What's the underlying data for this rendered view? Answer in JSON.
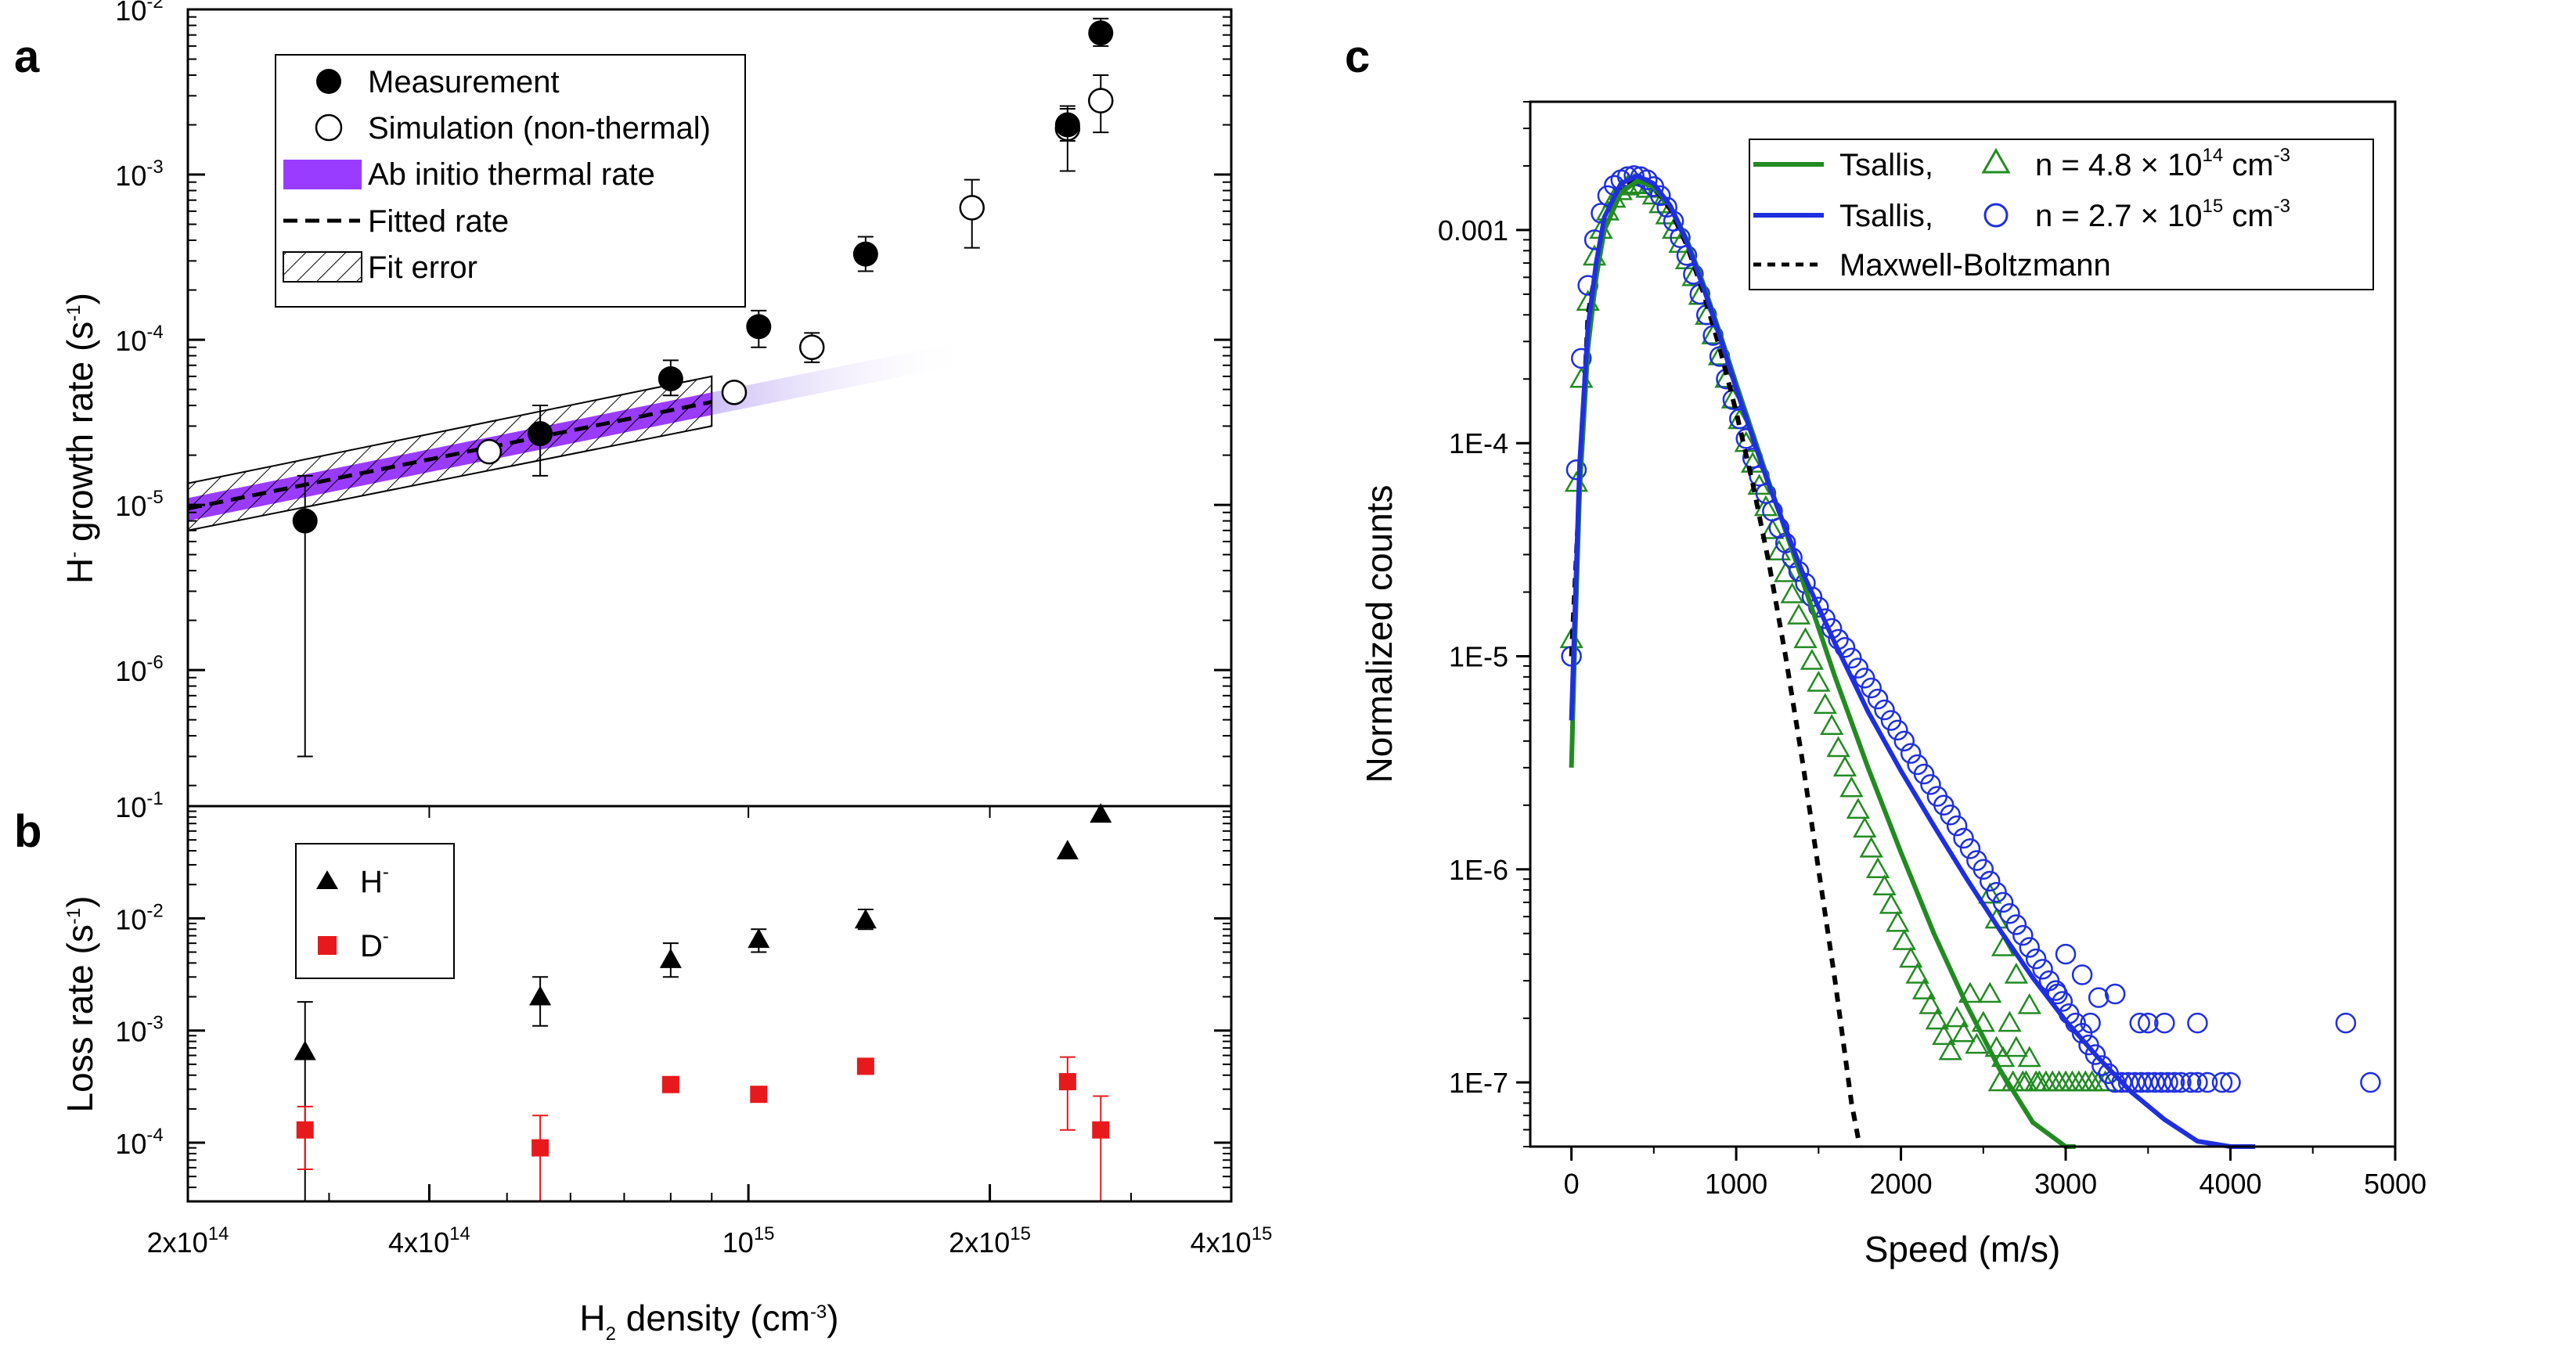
{
  "figure": {
    "panel_a": "a",
    "panel_b": "b",
    "panel_c": "c"
  },
  "chart_data": [
    {
      "type": "scatter",
      "id": "a",
      "ylabel": "H- growth rate (s-1)",
      "xscale": "log",
      "yscale": "log",
      "xlim": [
        200000000000000.0,
        4000000000000000.0
      ],
      "ylim": [
        1.5e-07,
        0.01
      ],
      "yticks": [
        {
          "value": 1e-06,
          "base": "10",
          "exp": "-6"
        },
        {
          "value": 1e-05,
          "base": "10",
          "exp": "-5"
        },
        {
          "value": 0.0001,
          "base": "10",
          "exp": "-4"
        },
        {
          "value": 0.001,
          "base": "10",
          "exp": "-3"
        },
        {
          "value": 0.01,
          "base": "10",
          "exp": "-2"
        }
      ],
      "legend": {
        "measurement": "Measurement",
        "simulation": "Simulation (non-thermal)",
        "abinitio": "Ab initio thermal rate",
        "fitted": "Fitted rate",
        "fiterror": "Fit error"
      },
      "measurement": [
        {
          "x": 280000000000000.0,
          "y": 8e-06,
          "lo": 3e-07,
          "hi": 1.5e-05
        },
        {
          "x": 550000000000000.0,
          "y": 2.7e-05,
          "lo": 1.5e-05,
          "hi": 4e-05
        },
        {
          "x": 800000000000000.0,
          "y": 5.8e-05,
          "lo": 4.6e-05,
          "hi": 7.5e-05
        },
        {
          "x": 1030000000000000.0,
          "y": 0.00012,
          "lo": 9e-05,
          "hi": 0.00015
        },
        {
          "x": 1400000000000000.0,
          "y": 0.00033,
          "lo": 0.00026,
          "hi": 0.00042
        },
        {
          "x": 2500000000000000.0,
          "y": 0.002,
          "lo": 0.0016,
          "hi": 0.0025
        },
        {
          "x": 2750000000000000.0,
          "y": 0.0072,
          "lo": 0.006,
          "hi": 0.0088
        }
      ],
      "simulation": [
        {
          "x": 475000000000000.0,
          "y": 2.1e-05,
          "lo": 1.9e-05,
          "hi": 2.3e-05
        },
        {
          "x": 960000000000000.0,
          "y": 4.8e-05,
          "lo": 4.3e-05,
          "hi": 5.3e-05
        },
        {
          "x": 1200000000000000.0,
          "y": 9e-05,
          "lo": 7.3e-05,
          "hi": 0.00011
        },
        {
          "x": 1900000000000000.0,
          "y": 0.00063,
          "lo": 0.00036,
          "hi": 0.00093
        },
        {
          "x": 2500000000000000.0,
          "y": 0.0019,
          "lo": 0.00105,
          "hi": 0.0026
        },
        {
          "x": 2750000000000000.0,
          "y": 0.0028,
          "lo": 0.0018,
          "hi": 0.004
        }
      ],
      "abinitio_band": {
        "x": [
          200000000000000.0,
          900000000000000.0
        ],
        "lower": [
          8e-06,
          3.5e-05
        ],
        "upper": [
          1.1e-05,
          4.8e-05
        ],
        "fade_to_x": 1900000000000000.0
      },
      "fitted_line": {
        "x": [
          200000000000000.0,
          900000000000000.0
        ],
        "y": [
          9.5e-06,
          4.2e-05
        ]
      },
      "fit_error_band": {
        "x": [
          200000000000000.0,
          900000000000000.0
        ],
        "lower": [
          7e-06,
          3e-05
        ],
        "upper": [
          1.35e-05,
          6e-05
        ]
      },
      "colors": {
        "abinitio": "#9a3cff",
        "fade": "#c9b8f5"
      }
    },
    {
      "type": "scatter",
      "id": "b",
      "ylabel": "Loss rate (s-1)",
      "xlabel": "H2 density (cm-3)",
      "xscale": "log",
      "yscale": "log",
      "xlim": [
        200000000000000.0,
        4000000000000000.0
      ],
      "ylim": [
        3e-05,
        0.1
      ],
      "xticks": [
        {
          "value": 200000000000000.0,
          "base": "2x10",
          "exp": "14"
        },
        {
          "value": 400000000000000.0,
          "base": "4x10",
          "exp": "14"
        },
        {
          "value": 1000000000000000.0,
          "base": "10",
          "exp": "15"
        },
        {
          "value": 2000000000000000.0,
          "base": "2x10",
          "exp": "15"
        },
        {
          "value": 4000000000000000.0,
          "base": "4x10",
          "exp": "15"
        }
      ],
      "yticks": [
        {
          "value": 0.0001,
          "base": "10",
          "exp": "-4"
        },
        {
          "value": 0.001,
          "base": "10",
          "exp": "-3"
        },
        {
          "value": 0.01,
          "base": "10",
          "exp": "-2"
        },
        {
          "value": 0.1,
          "base": "10",
          "exp": "-1"
        }
      ],
      "legend": {
        "h": "H",
        "h_sup": "-",
        "d": "D",
        "d_sup": "-"
      },
      "series": [
        {
          "name": "H-",
          "color": "#000000",
          "points": [
            {
              "x": 280000000000000.0,
              "y": 0.00065,
              "lo": 3e-05,
              "hi": 0.0018
            },
            {
              "x": 550000000000000.0,
              "y": 0.002,
              "lo": 0.0011,
              "hi": 0.003
            },
            {
              "x": 800000000000000.0,
              "y": 0.0043,
              "lo": 0.003,
              "hi": 0.006
            },
            {
              "x": 1030000000000000.0,
              "y": 0.0065,
              "lo": 0.005,
              "hi": 0.008
            },
            {
              "x": 1400000000000000.0,
              "y": 0.0097,
              "lo": 0.008,
              "hi": 0.012
            },
            {
              "x": 2500000000000000.0,
              "y": 0.04,
              "lo": 0.04,
              "hi": 0.04
            },
            {
              "x": 2750000000000000.0,
              "y": 0.085,
              "lo": 0.085,
              "hi": 0.085
            }
          ]
        },
        {
          "name": "D-",
          "color": "#e8191c",
          "points": [
            {
              "x": 280000000000000.0,
              "y": 0.00013,
              "lo": 5.8e-05,
              "hi": 0.00021
            },
            {
              "x": 550000000000000.0,
              "y": 9e-05,
              "lo": 3e-05,
              "hi": 0.000175
            },
            {
              "x": 800000000000000.0,
              "y": 0.00033,
              "lo": 0.00033,
              "hi": 0.00033
            },
            {
              "x": 1030000000000000.0,
              "y": 0.00027,
              "lo": 0.00027,
              "hi": 0.00027
            },
            {
              "x": 1400000000000000.0,
              "y": 0.00048,
              "lo": 0.00048,
              "hi": 0.00048
            },
            {
              "x": 2500000000000000.0,
              "y": 0.00035,
              "lo": 0.00013,
              "hi": 0.00058
            },
            {
              "x": 2750000000000000.0,
              "y": 0.00013,
              "lo": 3e-05,
              "hi": 0.00026
            }
          ]
        }
      ]
    },
    {
      "type": "line",
      "id": "c",
      "xlabel": "Speed (m/s)",
      "ylabel": "Normalized counts",
      "yscale": "log",
      "xlim": [
        -250,
        5000
      ],
      "ylim": [
        5e-08,
        0.004
      ],
      "xticks": [
        0,
        1000,
        2000,
        3000,
        4000,
        5000
      ],
      "yticks": [
        {
          "value": 1e-07,
          "label": "1E-7"
        },
        {
          "value": 1e-06,
          "label": "1E-6"
        },
        {
          "value": 1e-05,
          "label": "1E-5"
        },
        {
          "value": 0.0001,
          "label": "1E-4"
        },
        {
          "value": 0.001,
          "label": "0.001"
        }
      ],
      "legend": {
        "green_name": "Tsallis,",
        "green_n": "n = 4.8 × 10",
        "green_exp": "14",
        "blue_name": "Tsallis,",
        "blue_n": "n = 2.7 × 10",
        "blue_exp": "15",
        "unit": " cm",
        "unit_exp": "-3",
        "mb": "Maxwell-Boltzmann"
      },
      "colors": {
        "green": "#228b22",
        "blue": "#1f2fe0",
        "mb": "#000000"
      },
      "tsallis_green": {
        "x": [
          0,
          20,
          50,
          100,
          150,
          200,
          300,
          400,
          500,
          600,
          700,
          800,
          900,
          1000,
          1200,
          1400,
          1600,
          1800,
          2000,
          2200,
          2400,
          2600,
          2800,
          3000,
          3060
        ],
        "y": [
          3e-06,
          1.1e-05,
          6e-05,
          0.00028,
          0.0006,
          0.001,
          0.0015,
          0.0017,
          0.0016,
          0.0013,
          0.0009,
          0.00056,
          0.00033,
          0.00019,
          6.5e-05,
          2.3e-05,
          8e-06,
          3e-06,
          1.2e-06,
          5e-07,
          2.3e-07,
          1.15e-07,
          6.5e-08,
          5e-08,
          4.5e-08
        ]
      },
      "tsallis_blue": {
        "x": [
          0,
          20,
          50,
          100,
          150,
          200,
          300,
          400,
          500,
          600,
          700,
          800,
          900,
          1000,
          1200,
          1400,
          1600,
          1800,
          2000,
          2200,
          2400,
          2600,
          2800,
          3000,
          3200,
          3400,
          3600,
          3800,
          4000,
          4150
        ],
        "y": [
          5e-06,
          1.5e-05,
          8e-05,
          0.00035,
          0.0007,
          0.00115,
          0.00165,
          0.0018,
          0.00165,
          0.0013,
          0.00088,
          0.00054,
          0.00032,
          0.00018,
          6.3e-05,
          2.5e-05,
          1.15e-05,
          5.5e-06,
          2.9e-06,
          1.6e-06,
          9e-07,
          5.2e-07,
          3.1e-07,
          1.95e-07,
          1.3e-07,
          9e-08,
          6.7e-08,
          5.3e-08,
          4.6e-08,
          4.2e-08
        ]
      },
      "maxwell": {
        "x": [
          0,
          100,
          200,
          300,
          400,
          500,
          600,
          700,
          800,
          900,
          1000,
          1100,
          1200,
          1300,
          1400,
          1500,
          1600,
          1700,
          1750
        ],
        "y": [
          1e-05,
          0.0004,
          0.0011,
          0.0016,
          0.00175,
          0.0016,
          0.00125,
          0.00085,
          0.00051,
          0.00028,
          0.00014,
          6.5e-05,
          2.7e-05,
          1e-05,
          3.3e-06,
          1e-06,
          3e-07,
          8e-08,
          4.5e-08
        ]
      },
      "green_triangles": {
        "x": [
          0,
          30,
          60,
          100,
          140,
          180,
          220,
          260,
          300,
          340,
          380,
          420,
          460,
          500,
          540,
          580,
          620,
          660,
          700,
          740,
          780,
          820,
          860,
          900,
          940,
          980,
          1020,
          1060,
          1100,
          1140,
          1180,
          1220,
          1260,
          1300,
          1340,
          1380,
          1420,
          1460,
          1500,
          1540,
          1580,
          1620,
          1660,
          1700,
          1740,
          1780,
          1820,
          1860,
          1900,
          1940,
          1980,
          2020,
          2060,
          2100,
          2140,
          2180,
          2220,
          2260,
          2300,
          2340,
          2380,
          2420,
          2460,
          2500,
          2540,
          2580,
          2620,
          2660,
          2700,
          2740,
          2780,
          2820,
          2540,
          2580,
          2620,
          2700,
          2780,
          2600,
          2680,
          2760,
          2840,
          2880,
          2920,
          2960,
          3000,
          3040,
          3080,
          3120,
          3160,
          3200,
          3240
        ],
        "y": [
          1.2e-05,
          6.5e-05,
          0.0002,
          0.00046,
          0.00075,
          0.001,
          0.00122,
          0.0014,
          0.00152,
          0.0016,
          0.00163,
          0.00162,
          0.00156,
          0.00145,
          0.00132,
          0.00117,
          0.001,
          0.00086,
          0.00072,
          0.0006,
          0.00049,
          0.000395,
          0.00032,
          0.000255,
          0.0002,
          0.00016,
          0.000128,
          0.0001,
          8e-05,
          6.3e-05,
          5e-05,
          3.9e-05,
          3.1e-05,
          2.45e-05,
          1.95e-05,
          1.55e-05,
          1.2e-05,
          9.5e-06,
          7.5e-06,
          5.9e-06,
          4.7e-06,
          3.7e-06,
          3e-06,
          2.4e-06,
          1.9e-06,
          1.55e-06,
          1.25e-06,
          1e-06,
          8.3e-07,
          6.8e-07,
          5.6e-07,
          4.6e-07,
          3.8e-07,
          3.2e-07,
          2.7e-07,
          2.3e-07,
          1.95e-07,
          1.65e-07,
          1.4e-07,
          2e-07,
          1.7e-07,
          2.6e-07,
          1.5e-07,
          1.9e-07,
          2.6e-07,
          1.45e-07,
          1.3e-07,
          1.9e-07,
          1.45e-07,
          1e-07,
          1.3e-07,
          1e-07,
          7.6e-07,
          5.8e-07,
          4.3e-07,
          3.2e-07,
          2.3e-07,
          1e-07,
          1e-07,
          1e-07,
          1e-07,
          1e-07,
          1e-07,
          1e-07,
          1e-07,
          1e-07,
          1e-07,
          1e-07,
          1e-07,
          1e-07,
          1e-07
        ]
      },
      "blue_circles": {
        "x": [
          0,
          30,
          60,
          100,
          140,
          180,
          220,
          260,
          300,
          340,
          380,
          420,
          460,
          500,
          540,
          580,
          620,
          660,
          700,
          740,
          780,
          820,
          860,
          900,
          940,
          980,
          1020,
          1060,
          1100,
          1140,
          1180,
          1220,
          1260,
          1300,
          1340,
          1380,
          1420,
          1460,
          1500,
          1540,
          1580,
          1620,
          1660,
          1700,
          1740,
          1780,
          1820,
          1860,
          1900,
          1940,
          1980,
          2020,
          2060,
          2100,
          2140,
          2180,
          2220,
          2260,
          2300,
          2340,
          2380,
          2420,
          2460,
          2500,
          2540,
          2580,
          2620,
          2660,
          2700,
          2740,
          2780,
          2820,
          2860,
          2900,
          2940,
          2980,
          3020,
          3060,
          3100,
          3140,
          3180,
          3220,
          3260,
          3300,
          3340,
          3380,
          3420,
          3460,
          3500,
          3540,
          3580,
          3620,
          3660,
          3700,
          3760,
          3800,
          3860,
          3950,
          4000,
          2950,
          3150,
          3300,
          3500,
          3800,
          4700,
          4850,
          3000,
          3100,
          3200,
          3450,
          3600
        ],
        "y": [
          1e-05,
          7.5e-05,
          0.00025,
          0.00055,
          0.0009,
          0.0012,
          0.00145,
          0.00162,
          0.00172,
          0.00178,
          0.0018,
          0.00178,
          0.00172,
          0.0016,
          0.00145,
          0.00128,
          0.0011,
          0.00092,
          0.00076,
          0.00062,
          0.0005,
          0.0004,
          0.00032,
          0.000255,
          0.0002,
          0.00016,
          0.00013,
          0.000105,
          8.5e-05,
          7e-05,
          5.8e-05,
          4.8e-05,
          4e-05,
          3.4e-05,
          2.9e-05,
          2.5e-05,
          2.2e-05,
          1.9e-05,
          1.7e-05,
          1.5e-05,
          1.35e-05,
          1.2e-05,
          1.1e-05,
          9.8e-06,
          8.8e-06,
          7.9e-06,
          7.1e-06,
          6.3e-06,
          5.6e-06,
          5e-06,
          4.5e-06,
          4e-06,
          3.5e-06,
          3.1e-06,
          2.8e-06,
          2.5e-06,
          2.2e-06,
          2e-06,
          1.8e-06,
          1.6e-06,
          1.4e-06,
          1.25e-06,
          1.1e-06,
          1e-06,
          8.8e-07,
          7.8e-07,
          7e-07,
          6.2e-07,
          5.5e-07,
          4.9e-07,
          4.3e-07,
          3.8e-07,
          3.4e-07,
          3e-07,
          2.7e-07,
          2.4e-07,
          2.1e-07,
          1.9e-07,
          1.7e-07,
          1.5e-07,
          1.35e-07,
          1.2e-07,
          1.1e-07,
          1e-07,
          1e-07,
          1e-07,
          1e-07,
          1e-07,
          1e-07,
          1e-07,
          1e-07,
          1e-07,
          1e-07,
          1e-07,
          1e-07,
          1e-07,
          1e-07,
          1e-07,
          1e-07,
          2.6e-07,
          1.9e-07,
          2.6e-07,
          1.9e-07,
          1.9e-07,
          1.9e-07,
          1e-07,
          4e-07,
          3.2e-07,
          2.5e-07,
          1.9e-07,
          1.9e-07
        ]
      }
    }
  ]
}
